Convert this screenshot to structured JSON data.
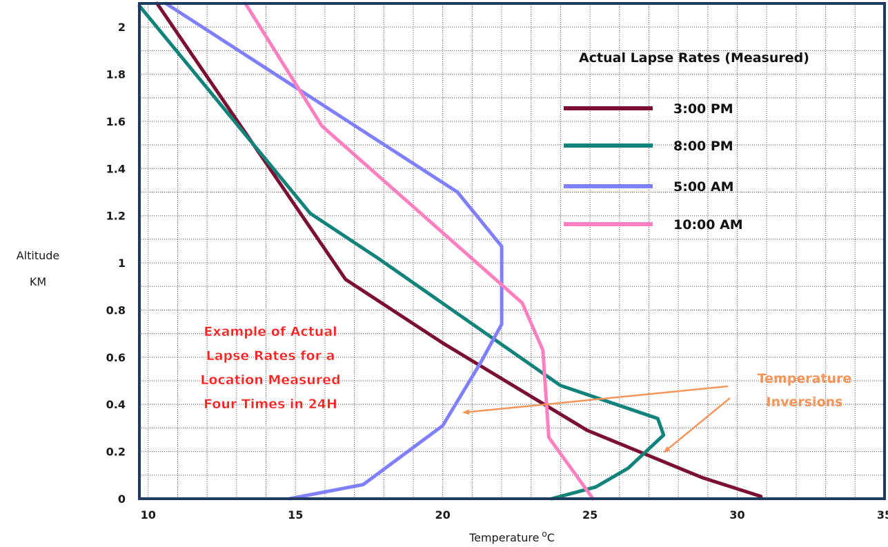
{
  "chart_data": {
    "type": "line",
    "title": "",
    "xlabel": "Temperature",
    "xlabel_sup": "o",
    "xlabel_unit": "C",
    "ylabel_lines": [
      "Altitude",
      "KM"
    ],
    "xlim": [
      9.7,
      35
    ],
    "ylim": [
      0,
      2.1
    ],
    "xticks": [
      10,
      15,
      20,
      25,
      30,
      35
    ],
    "yticks": [
      0,
      0.2,
      0.4,
      0.6,
      0.8,
      1,
      1.2,
      1.4,
      1.6,
      1.8,
      2
    ],
    "x_minor_step": 1,
    "y_minor_step": 0.1,
    "grid": true,
    "legend_title": "Actual Lapse Rates (Measured)",
    "legend_position": "top-right",
    "series": [
      {
        "name": "3:00 PM",
        "color": "#7b0f33",
        "points": [
          [
            10.3,
            2.1
          ],
          [
            16.7,
            0.93
          ],
          [
            20.0,
            0.66
          ],
          [
            24.9,
            0.29
          ],
          [
            28.8,
            0.09
          ],
          [
            30.8,
            0.01
          ]
        ]
      },
      {
        "name": "8:00 PM",
        "color": "#12837a",
        "points": [
          [
            9.7,
            2.09
          ],
          [
            15.5,
            1.21
          ],
          [
            17.8,
            1.02
          ],
          [
            24.0,
            0.48
          ],
          [
            27.3,
            0.34
          ],
          [
            27.5,
            0.27
          ],
          [
            26.3,
            0.13
          ],
          [
            25.2,
            0.05
          ],
          [
            23.7,
            0.0
          ]
        ]
      },
      {
        "name": "5:00 AM",
        "color": "#8080ff",
        "points": [
          [
            10.6,
            2.1
          ],
          [
            20.5,
            1.3
          ],
          [
            22.0,
            1.07
          ],
          [
            22.0,
            0.74
          ],
          [
            21.3,
            0.58
          ],
          [
            20.0,
            0.31
          ],
          [
            17.3,
            0.06
          ],
          [
            14.8,
            0.0
          ]
        ]
      },
      {
        "name": "10:00 AM",
        "color": "#ff80c0",
        "points": [
          [
            13.3,
            2.1
          ],
          [
            15.9,
            1.58
          ],
          [
            22.7,
            0.83
          ],
          [
            23.4,
            0.63
          ],
          [
            23.6,
            0.26
          ],
          [
            25.1,
            0.0
          ]
        ]
      }
    ],
    "annotations": [
      {
        "lines": [
          "Example of Actual",
          "Lapse Rates for a",
          "Location Measured",
          "Four Times in 24H"
        ],
        "color": "#ff2020"
      },
      {
        "lines": [
          "Temperature",
          "Inversions"
        ],
        "color": "#f5955a"
      }
    ]
  }
}
